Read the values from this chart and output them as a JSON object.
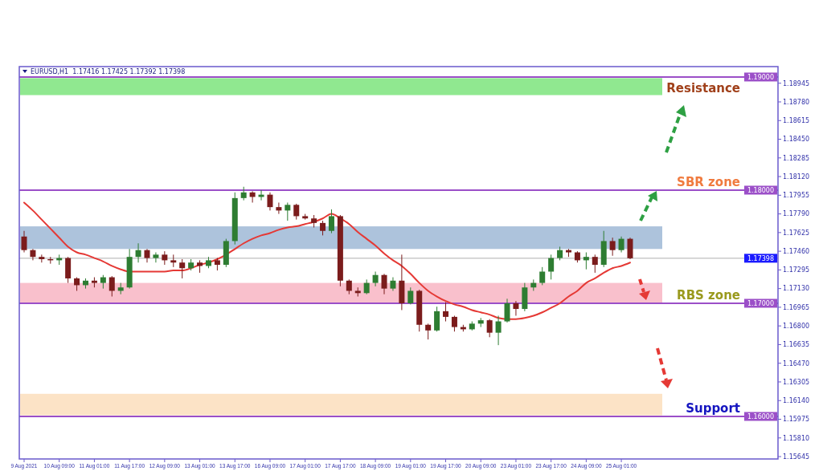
{
  "chart_data": {
    "type": "candlestick",
    "title": "EURUSD,H1  1.17416 1.17425 1.17392 1.17398",
    "categories": [
      "9 Aug 2021",
      null,
      null,
      null,
      "10 Aug 09:00",
      null,
      null,
      null,
      "11 Aug 01:00",
      null,
      null,
      null,
      "11 Aug 17:00",
      null,
      null,
      null,
      "12 Aug 09:00",
      null,
      null,
      null,
      "13 Aug 01:00",
      null,
      null,
      null,
      "13 Aug 17:00",
      null,
      null,
      null,
      "16 Aug 09:00",
      null,
      null,
      null,
      "17 Aug 01:00",
      null,
      null,
      null,
      "17 Aug 17:00",
      null,
      null,
      null,
      "18 Aug 09:00",
      null,
      null,
      null,
      "19 Aug 01:00",
      null,
      null,
      null,
      "19 Aug 17:00",
      null,
      null,
      null,
      "20 Aug 09:00",
      null,
      null,
      null,
      "23 Aug 01:00",
      null,
      null,
      null,
      "23 Aug 17:00",
      null,
      null,
      null,
      "24 Aug 09:00",
      null,
      null,
      null,
      "25 Aug 01:00",
      null
    ],
    "series": [
      {
        "type": "candlestick",
        "ohlc": [
          [
            1.1759,
            1.1764,
            1.1745,
            1.1747
          ],
          [
            1.1747,
            1.1748,
            1.1738,
            1.1741
          ],
          [
            1.1741,
            1.1743,
            1.1736,
            1.1739
          ],
          [
            1.1739,
            1.1741,
            1.1735,
            1.1738
          ],
          [
            1.1738,
            1.1743,
            1.1734,
            1.174
          ],
          [
            1.174,
            1.1741,
            1.1718,
            1.1722
          ],
          [
            1.1722,
            1.1723,
            1.1711,
            1.1716
          ],
          [
            1.1716,
            1.1722,
            1.1713,
            1.172
          ],
          [
            1.172,
            1.1723,
            1.1714,
            1.1718
          ],
          [
            1.1718,
            1.1725,
            1.1713,
            1.1723
          ],
          [
            1.1723,
            1.1724,
            1.1706,
            1.1711
          ],
          [
            1.1711,
            1.1718,
            1.1708,
            1.1714
          ],
          [
            1.1714,
            1.1748,
            1.1713,
            1.1741
          ],
          [
            1.1741,
            1.1753,
            1.1736,
            1.1747
          ],
          [
            1.1747,
            1.1748,
            1.1736,
            1.174
          ],
          [
            1.174,
            1.1745,
            1.1736,
            1.1743
          ],
          [
            1.1743,
            1.1746,
            1.1734,
            1.1738
          ],
          [
            1.1738,
            1.1743,
            1.1732,
            1.1736
          ],
          [
            1.1736,
            1.1739,
            1.1722,
            1.1731
          ],
          [
            1.1731,
            1.1739,
            1.1729,
            1.1736
          ],
          [
            1.1736,
            1.1738,
            1.1727,
            1.1733
          ],
          [
            1.1733,
            1.1741,
            1.1731,
            1.1738
          ],
          [
            1.1738,
            1.174,
            1.1729,
            1.1734
          ],
          [
            1.1734,
            1.1757,
            1.1732,
            1.1755
          ],
          [
            1.1755,
            1.1798,
            1.1752,
            1.1793
          ],
          [
            1.1793,
            1.1803,
            1.1791,
            1.1798
          ],
          [
            1.1798,
            1.1799,
            1.1789,
            1.1794
          ],
          [
            1.1794,
            1.18,
            1.1791,
            1.1796
          ],
          [
            1.1796,
            1.1798,
            1.1782,
            1.1785
          ],
          [
            1.1785,
            1.1789,
            1.1779,
            1.1782
          ],
          [
            1.1782,
            1.1789,
            1.1773,
            1.1787
          ],
          [
            1.1787,
            1.1788,
            1.1774,
            1.1777
          ],
          [
            1.1777,
            1.1779,
            1.1774,
            1.1775
          ],
          [
            1.1775,
            1.1778,
            1.1767,
            1.1771
          ],
          [
            1.1771,
            1.1773,
            1.176,
            1.1764
          ],
          [
            1.1764,
            1.1783,
            1.1762,
            1.1777
          ],
          [
            1.1777,
            1.1778,
            1.1715,
            1.172
          ],
          [
            1.172,
            1.1721,
            1.1708,
            1.1711
          ],
          [
            1.1711,
            1.1714,
            1.1706,
            1.1709
          ],
          [
            1.1709,
            1.1721,
            1.1708,
            1.1718
          ],
          [
            1.1718,
            1.1728,
            1.1715,
            1.1725
          ],
          [
            1.1725,
            1.1726,
            1.1708,
            1.1713
          ],
          [
            1.1713,
            1.1723,
            1.1711,
            1.172
          ],
          [
            1.172,
            1.1743,
            1.1694,
            1.17
          ],
          [
            1.17,
            1.1714,
            1.1699,
            1.1711
          ],
          [
            1.1711,
            1.1712,
            1.1675,
            1.1681
          ],
          [
            1.1681,
            1.1682,
            1.1668,
            1.1676
          ],
          [
            1.1676,
            1.1697,
            1.1675,
            1.1693
          ],
          [
            1.1693,
            1.1701,
            1.1684,
            1.1688
          ],
          [
            1.1688,
            1.1689,
            1.1675,
            1.1679
          ],
          [
            1.1679,
            1.1681,
            1.1675,
            1.1677
          ],
          [
            1.1677,
            1.1684,
            1.1676,
            1.1682
          ],
          [
            1.1682,
            1.1687,
            1.1679,
            1.1685
          ],
          [
            1.1685,
            1.1686,
            1.167,
            1.1674
          ],
          [
            1.1674,
            1.1689,
            1.1663,
            1.1684
          ],
          [
            1.1684,
            1.1704,
            1.1683,
            1.17
          ],
          [
            1.17,
            1.1702,
            1.1689,
            1.1695
          ],
          [
            1.1695,
            1.1718,
            1.1693,
            1.1714
          ],
          [
            1.1714,
            1.1721,
            1.1711,
            1.1718
          ],
          [
            1.1718,
            1.1732,
            1.1716,
            1.1728
          ],
          [
            1.1728,
            1.1743,
            1.1721,
            1.174
          ],
          [
            1.174,
            1.175,
            1.1738,
            1.1747
          ],
          [
            1.1747,
            1.1748,
            1.1741,
            1.1745
          ],
          [
            1.1745,
            1.1746,
            1.1736,
            1.1738
          ],
          [
            1.1738,
            1.1745,
            1.173,
            1.1741
          ],
          [
            1.1741,
            1.1743,
            1.1727,
            1.1734
          ],
          [
            1.1734,
            1.1764,
            1.1732,
            1.1755
          ],
          [
            1.1755,
            1.1758,
            1.1742,
            1.1747
          ],
          [
            1.1747,
            1.1759,
            1.1745,
            1.1757
          ],
          [
            1.1757,
            1.1758,
            1.1739,
            1.17398
          ]
        ]
      },
      {
        "type": "line",
        "color": "#e53935",
        "values": [
          1.1789,
          1.1782,
          1.1774,
          1.1766,
          1.1758,
          1.175,
          1.1745,
          1.1743,
          1.174,
          1.1737,
          1.1733,
          1.173,
          1.1728,
          1.1728,
          1.1728,
          1.1728,
          1.1728,
          1.1729,
          1.1729,
          1.1731,
          1.1734,
          1.1736,
          1.1739,
          1.1743,
          1.1748,
          1.1753,
          1.1757,
          1.176,
          1.1762,
          1.1765,
          1.1767,
          1.1768,
          1.177,
          1.1772,
          1.1775,
          1.1779,
          1.1775,
          1.177,
          1.1763,
          1.1757,
          1.1751,
          1.1744,
          1.1738,
          1.1733,
          1.1726,
          1.1718,
          1.1711,
          1.1706,
          1.1702,
          1.1699,
          1.1697,
          1.1694,
          1.1692,
          1.169,
          1.1687,
          1.1686,
          1.1686,
          1.1687,
          1.1689,
          1.1692,
          1.1696,
          1.17,
          1.1706,
          1.1711,
          1.1718,
          1.1722,
          1.1727,
          1.1731,
          1.1733,
          1.1736
        ]
      }
    ],
    "ylim": [
      1.15624,
      1.19092
    ],
    "yticks": [
      1.18945,
      {
        "value": 1.1878,
        "label": "1.18780"
      },
      1.18615,
      {
        "value": 1.1845,
        "label": "1.18450"
      },
      1.18285,
      {
        "value": 1.1812,
        "label": "1.18120"
      },
      1.17955,
      {
        "value": 1.1779,
        "label": "1.17790"
      },
      1.17625,
      {
        "value": 1.1746,
        "label": "1.17460"
      },
      1.17295,
      {
        "value": 1.1713,
        "label": "1.17130"
      },
      1.16965,
      {
        "value": 1.168,
        "label": "1.16800"
      },
      1.16635,
      {
        "value": 1.1647,
        "label": "1.16470"
      },
      1.16305,
      {
        "value": 1.1614,
        "label": "1.16140"
      },
      1.15975,
      {
        "value": 1.1581,
        "label": "1.15810"
      },
      1.15645
    ],
    "bands": [
      {
        "axis": "y",
        "from": 1.1884,
        "to": 1.1899,
        "color": "#90e890"
      },
      {
        "axis": "y",
        "from": 1.1748,
        "to": 1.1768,
        "color": "#adc3dc"
      },
      {
        "axis": "y",
        "from": 1.17,
        "to": 1.1718,
        "color": "#f9c0cc"
      },
      {
        "axis": "y",
        "from": 1.1601,
        "to": 1.162,
        "color": "#fce3c6"
      }
    ],
    "ref_lines": [
      {
        "axis": "y",
        "value": 1.19,
        "label": "1.19000",
        "color": "#9b4fc8"
      },
      {
        "axis": "y",
        "value": 1.18,
        "label": "1.18000",
        "color": "#9b4fc8"
      },
      {
        "axis": "y",
        "value": 1.17,
        "label": "1.17000",
        "color": "#9b4fc8"
      },
      {
        "axis": "y",
        "value": 1.16,
        "label": "1.16000",
        "color": "#9b4fc8"
      },
      {
        "axis": "y",
        "value": 1.17398,
        "label": "1.17398",
        "color": "#b0b0b0"
      }
    ],
    "annotations": [
      {
        "text": "Resistance",
        "y": 1.19
      },
      {
        "text": "SBR zone",
        "y": 1.18
      },
      {
        "text": "RBS zone",
        "y": 1.17
      },
      {
        "text": "Support",
        "y": 1.16
      }
    ]
  }
}
